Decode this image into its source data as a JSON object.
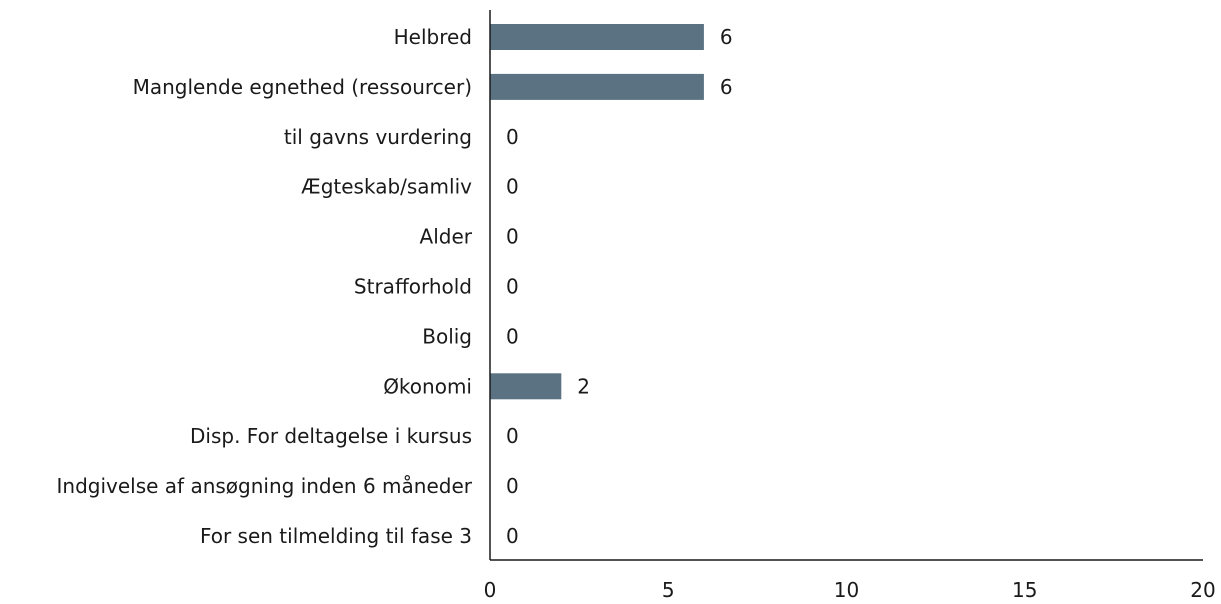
{
  "chart_data": {
    "type": "bar",
    "orientation": "horizontal",
    "categories": [
      "Helbred",
      "Manglende egnethed (ressourcer)",
      "til gavns vurdering",
      "Ægteskab/samliv",
      "Alder",
      "Strafforhold",
      "Bolig",
      "Økonomi",
      "Disp. For deltagelse i kursus",
      "Indgivelse af ansøgning inden 6 måneder",
      "For sen tilmelding til fase 3"
    ],
    "values": [
      6,
      6,
      0,
      0,
      0,
      0,
      0,
      2,
      0,
      0,
      0
    ],
    "xlim": [
      0,
      20
    ],
    "xticks": [
      0,
      5,
      10,
      15,
      20
    ],
    "title": "",
    "xlabel": "",
    "ylabel": "",
    "grid": false,
    "legend": "none",
    "data_labels": true,
    "bar_color": "#5a7282",
    "axis_color": "#1a1a1a"
  }
}
